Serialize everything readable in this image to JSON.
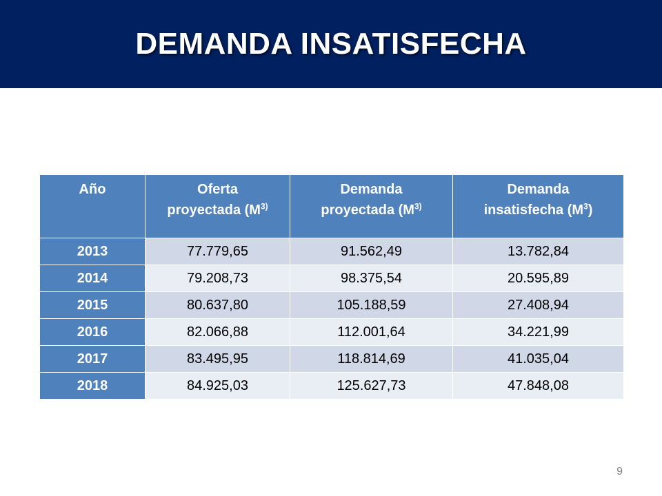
{
  "slide": {
    "title": "DEMANDA INSATISFECHA",
    "page_number": "9"
  },
  "colors": {
    "header_band": "#002060",
    "table_header": "#4f81bd",
    "row_band_dark": "#d0d8e8",
    "row_band_light": "#e9edf4"
  },
  "table": {
    "headers": [
      {
        "line1": "Año",
        "line2": "",
        "unit": ""
      },
      {
        "line1": "Oferta",
        "line2": "proyectada (M",
        "unit": "3)"
      },
      {
        "line1": "Demanda",
        "line2": "proyectada (M",
        "unit": "3)"
      },
      {
        "line1": "Demanda",
        "line2": "insatisfecha (M",
        "unit": "3",
        "close": ")"
      }
    ],
    "rows": [
      {
        "year": "2013",
        "oferta": "77.779,65",
        "demanda": "91.562,49",
        "insatisfecha": "13.782,84"
      },
      {
        "year": "2014",
        "oferta": "79.208,73",
        "demanda": "98.375,54",
        "insatisfecha": "20.595,89"
      },
      {
        "year": "2015",
        "oferta": "80.637,80",
        "demanda": "105.188,59",
        "insatisfecha": "27.408,94"
      },
      {
        "year": "2016",
        "oferta": "82.066,88",
        "demanda": "112.001,64",
        "insatisfecha": "34.221,99"
      },
      {
        "year": "2017",
        "oferta": "83.495,95",
        "demanda": "118.814,69",
        "insatisfecha": "41.035,04"
      },
      {
        "year": "2018",
        "oferta": "84.925,03",
        "demanda": "125.627,73",
        "insatisfecha": "47.848,08"
      }
    ]
  }
}
